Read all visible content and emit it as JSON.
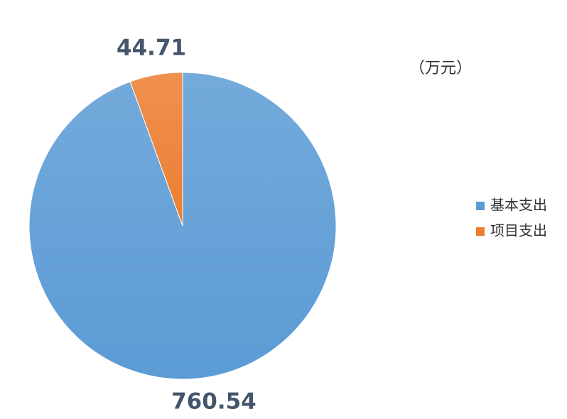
{
  "chart_data": {
    "type": "pie",
    "unit_label": "（万元）",
    "categories": [
      "基本支出",
      "项目支出"
    ],
    "values": [
      760.54,
      44.71
    ],
    "colors": [
      "#5b9bd5",
      "#ed7d31"
    ],
    "legend": "right"
  }
}
